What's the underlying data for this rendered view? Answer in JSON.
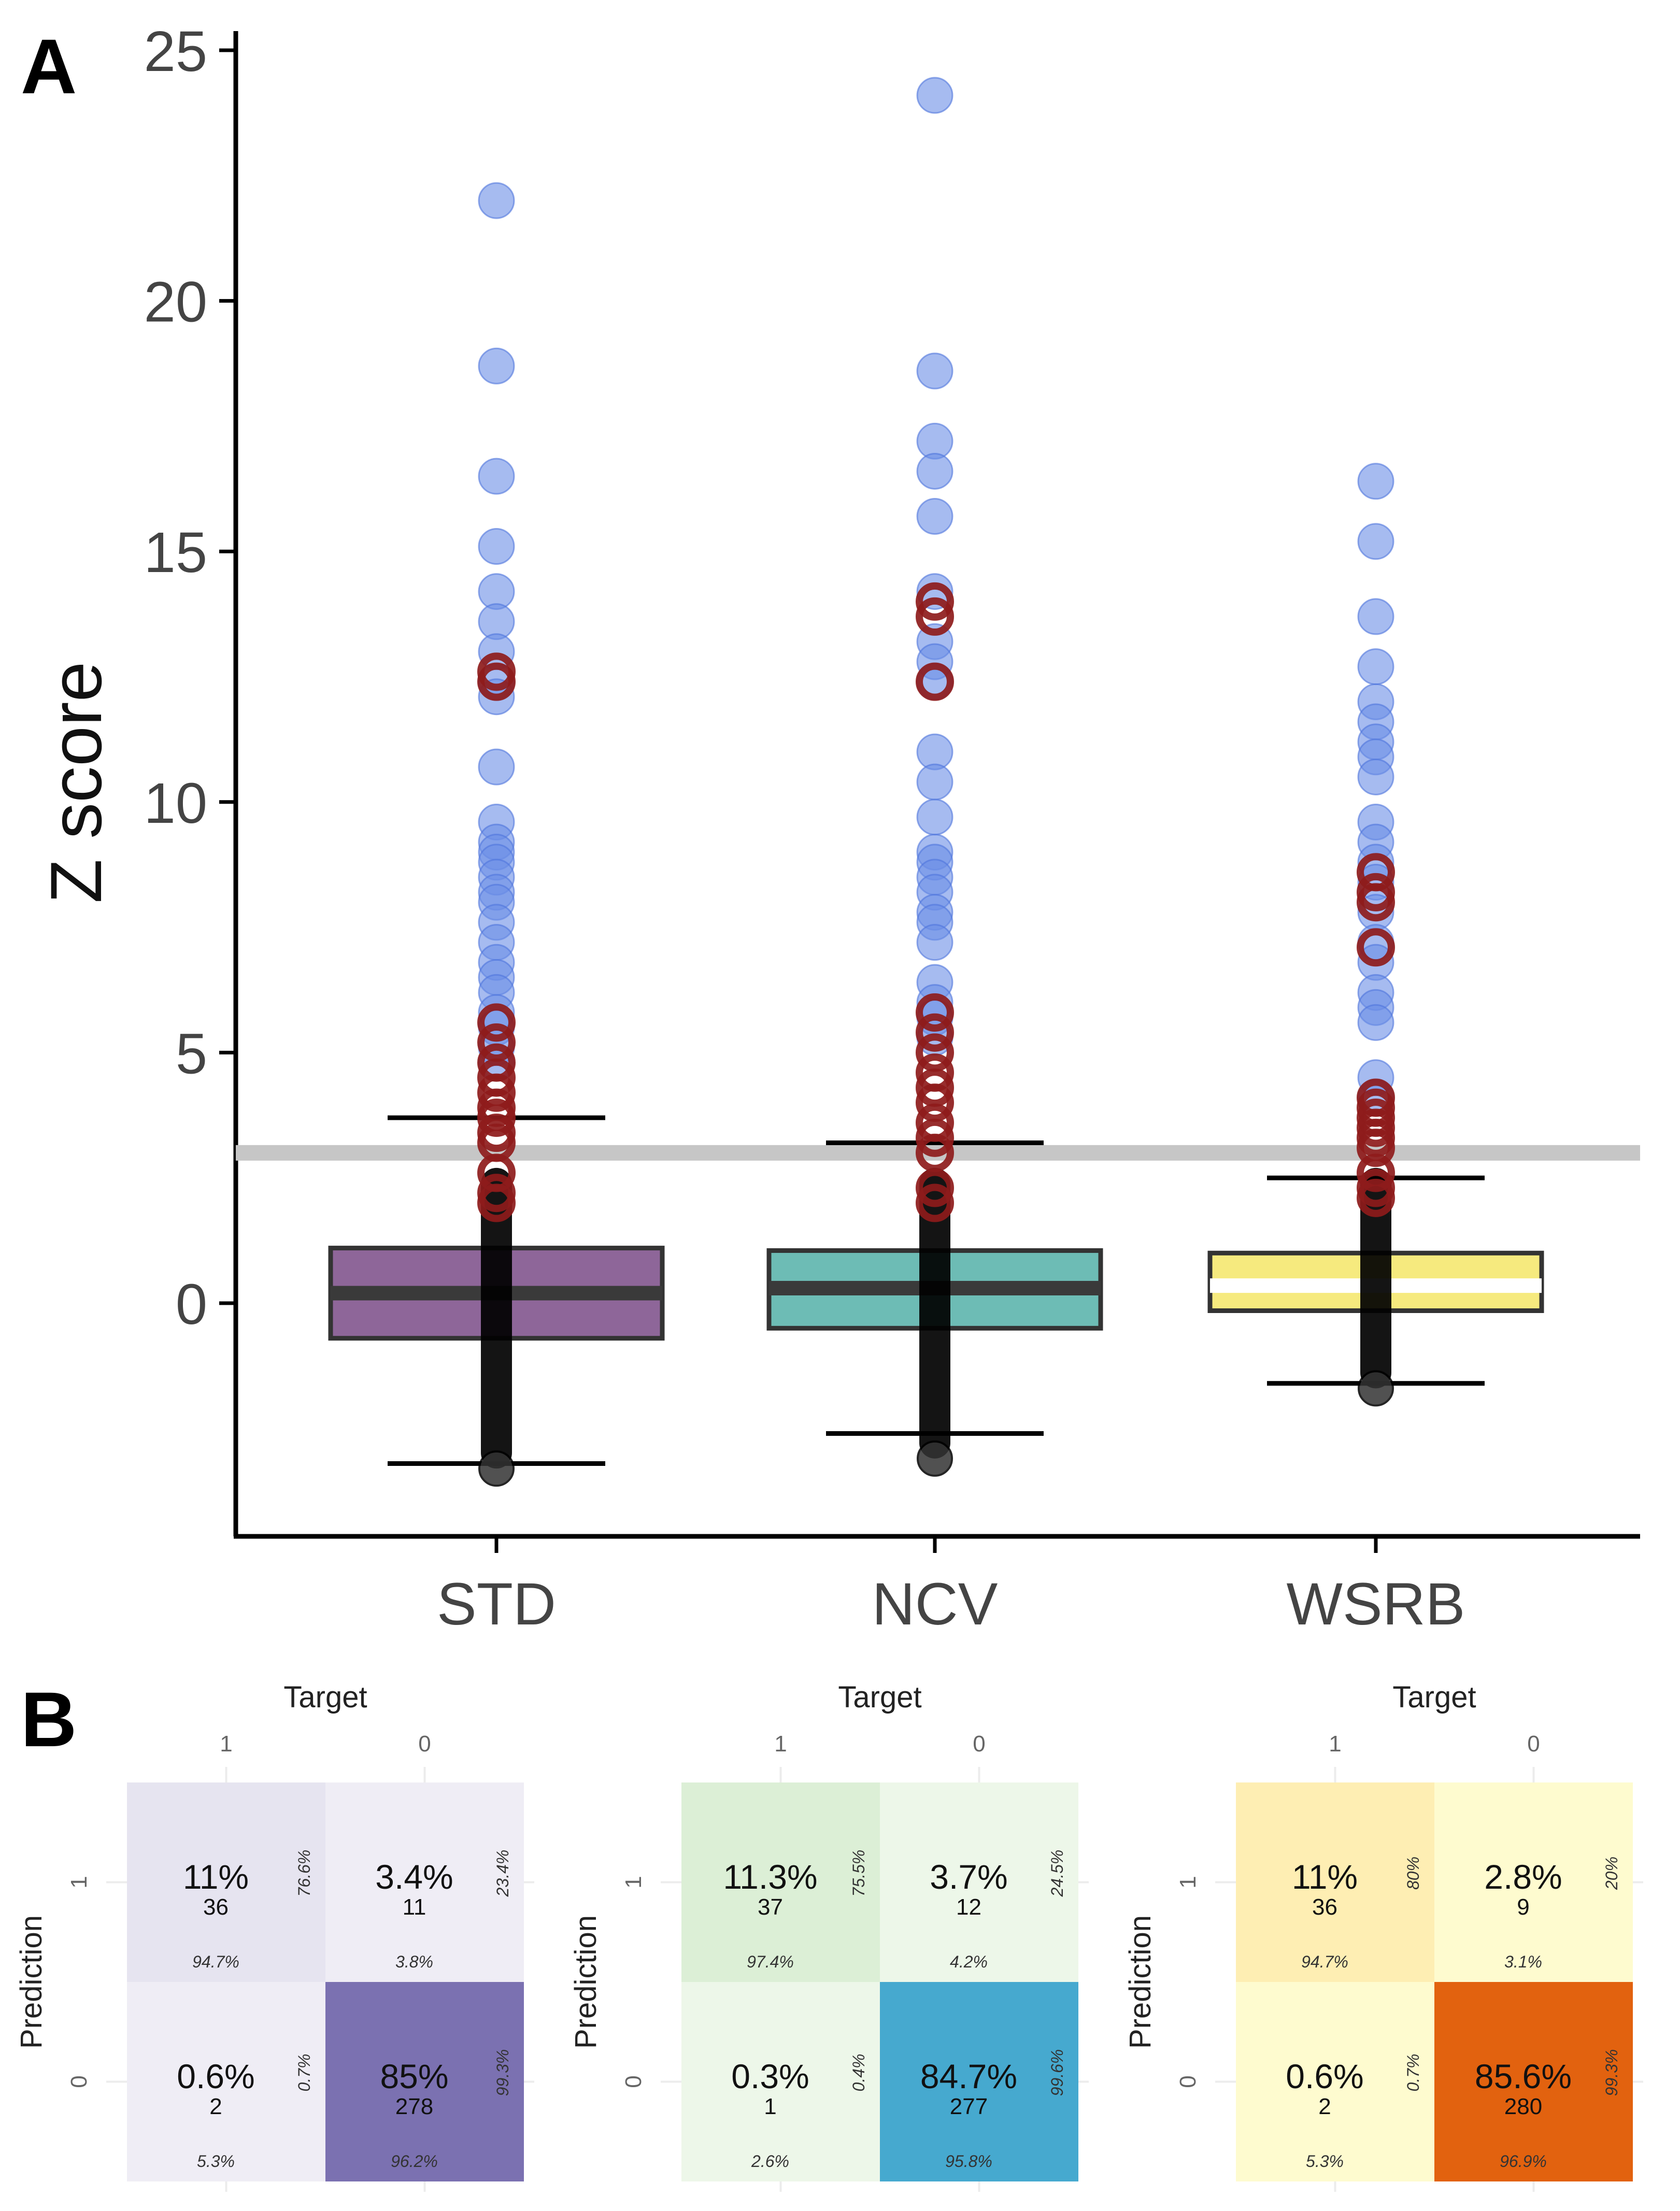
{
  "panel_a": {
    "label": "A",
    "chart_data": {
      "type": "boxplot",
      "title": "",
      "xlabel": "",
      "ylabel": "Z score",
      "ylim": [
        -4.0,
        25.5
      ],
      "yticks": [
        0,
        5,
        10,
        15,
        20,
        25
      ],
      "threshold": 3.0,
      "categories": [
        "STD",
        "NCV",
        "WSRB"
      ],
      "boxes": [
        {
          "name": "STD",
          "color": "#8e6699",
          "median_color": "#3a3a3a",
          "q1": -0.7,
          "median": 0.2,
          "q3": 1.1,
          "whisker_low": -3.2,
          "whisker_high": 3.7,
          "min_point": -3.3,
          "blue_points": [
            22.0,
            18.7,
            16.5,
            15.1,
            14.2,
            13.6,
            13.0,
            12.4,
            12.1,
            10.7,
            9.6,
            9.2,
            9.0,
            8.8,
            8.5,
            8.2,
            8.0,
            7.6,
            7.2,
            6.8,
            6.5,
            6.2,
            5.8,
            5.5,
            5.1,
            4.8
          ],
          "red_points": [
            12.6,
            12.4,
            5.6,
            5.2,
            4.8,
            4.5,
            4.2,
            3.9,
            3.7,
            3.4,
            3.2,
            2.6,
            2.2,
            2.0
          ]
        },
        {
          "name": "NCV",
          "color": "#6dbcb5",
          "median_color": "#3a3a3a",
          "q1": -0.5,
          "median": 0.3,
          "q3": 1.05,
          "whisker_low": -2.6,
          "whisker_high": 3.2,
          "min_point": -3.1,
          "blue_points": [
            24.1,
            18.6,
            17.2,
            16.6,
            15.7,
            14.2,
            13.2,
            12.8,
            12.4,
            11.0,
            10.4,
            9.7,
            9.0,
            8.8,
            8.5,
            8.2,
            7.8,
            7.6,
            7.2,
            6.4,
            6.0,
            5.7,
            5.3
          ],
          "red_points": [
            14.0,
            13.7,
            12.4,
            5.8,
            5.4,
            5.0,
            4.6,
            4.3,
            4.0,
            3.6,
            3.3,
            3.0,
            2.3,
            2.0
          ]
        },
        {
          "name": "WSRB",
          "color": "#f6ea7e",
          "median_color": "#ffffff",
          "q1": -0.15,
          "median": 0.35,
          "q3": 1.0,
          "whisker_low": -1.6,
          "whisker_high": 2.5,
          "min_point": -1.7,
          "blue_points": [
            16.4,
            15.2,
            13.7,
            12.7,
            12.0,
            11.6,
            11.2,
            10.9,
            10.5,
            9.6,
            9.2,
            8.8,
            8.4,
            7.8,
            7.2,
            6.8,
            6.2,
            5.9,
            5.6,
            4.5,
            4.1
          ],
          "red_points": [
            8.6,
            8.2,
            8.0,
            7.1,
            4.1,
            3.9,
            3.7,
            3.5,
            3.3,
            3.1,
            2.6,
            2.3,
            2.1
          ]
        }
      ]
    }
  },
  "panel_b": {
    "label": "B",
    "target_label": "Target",
    "prediction_label": "Prediction",
    "col_levels": [
      "1",
      "0"
    ],
    "row_levels": [
      "1",
      "0"
    ],
    "chart_data": [
      {
        "type": "heatmap",
        "name": "STD",
        "colors": [
          "#e6e4f0",
          "#efedf5",
          "#efedf5",
          "#7b71b1"
        ],
        "cells": [
          {
            "pct": "11%",
            "count": "36",
            "row_pct": "76.6%",
            "col_pct": "94.7%"
          },
          {
            "pct": "3.4%",
            "count": "11",
            "row_pct": "23.4%",
            "col_pct": "3.8%"
          },
          {
            "pct": "0.6%",
            "count": "2",
            "row_pct": "0.7%",
            "col_pct": "5.3%"
          },
          {
            "pct": "85%",
            "count": "278",
            "row_pct": "99.3%",
            "col_pct": "96.2%"
          }
        ]
      },
      {
        "type": "heatmap",
        "name": "NCV",
        "colors": [
          "#dcefd6",
          "#edf7e9",
          "#edf7e9",
          "#46a9cf"
        ],
        "cells": [
          {
            "pct": "11.3%",
            "count": "37",
            "row_pct": "75.5%",
            "col_pct": "97.4%"
          },
          {
            "pct": "3.7%",
            "count": "12",
            "row_pct": "24.5%",
            "col_pct": "4.2%"
          },
          {
            "pct": "0.3%",
            "count": "1",
            "row_pct": "0.4%",
            "col_pct": "2.6%"
          },
          {
            "pct": "84.7%",
            "count": "277",
            "row_pct": "99.6%",
            "col_pct": "95.8%"
          }
        ]
      },
      {
        "type": "heatmap",
        "name": "WSRB",
        "colors": [
          "#feeeb3",
          "#fefbcf",
          "#fefbcf",
          "#e2620f"
        ],
        "cells": [
          {
            "pct": "11%",
            "count": "36",
            "row_pct": "80%",
            "col_pct": "94.7%"
          },
          {
            "pct": "2.8%",
            "count": "9",
            "row_pct": "20%",
            "col_pct": "3.1%"
          },
          {
            "pct": "0.6%",
            "count": "2",
            "row_pct": "0.7%",
            "col_pct": "5.3%"
          },
          {
            "pct": "85.6%",
            "count": "280",
            "row_pct": "99.3%",
            "col_pct": "96.9%"
          }
        ]
      }
    ]
  }
}
